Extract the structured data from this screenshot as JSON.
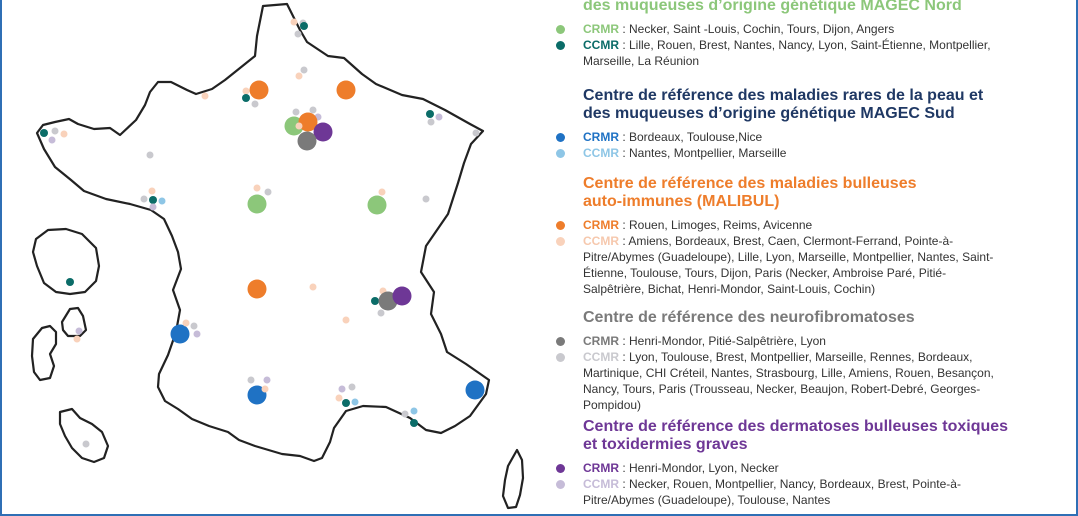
{
  "colors": {
    "magec_nord_cr": "#8cc77a",
    "magec_nord_cc": "#0b6c68",
    "magec_sud_cr": "#1f72c4",
    "magec_sud_cc": "#8ec6e6",
    "malibul_cr": "#ee7d2b",
    "malibul_cc": "#f9d2bb",
    "neurofib_cr": "#7a7a7a",
    "neurofib_cc": "#c9c9ce",
    "toxiques_cr": "#6e3796",
    "toxiques_cc": "#c6bcd8",
    "map_outline": "#222222",
    "frame": "#2f6fb5"
  },
  "legend": [
    {
      "title": "des muqueuses d’origine génétique MAGEC Nord",
      "title_color": "#8cc77a",
      "rows": [
        {
          "key": "CRMR",
          "text": " : Necker, Saint -Louis, Cochin, Tours, Dijon, Angers",
          "dot_color": "#8cc77a",
          "key_color": "#8cc77a"
        },
        {
          "key": "CCMR",
          "text": " : Lille, Rouen, Brest, Nantes, Nancy, Lyon, Saint-Étienne, Montpellier,\nMarseille, La Réunion",
          "dot_color": "#0b6c68",
          "key_color": "#0b6c68"
        }
      ]
    },
    {
      "title": "Centre de référence des maladies rares de la peau et\ndes muqueuses d’origine génétique MAGEC Sud",
      "title_color": "#1f3864",
      "rows": [
        {
          "key": "CRMR",
          "text": " : Bordeaux, Toulouse,Nice",
          "dot_color": "#1f72c4",
          "key_color": "#1f72c4"
        },
        {
          "key": "CCMR",
          "text": " : Nantes, Montpellier, Marseille",
          "dot_color": "#8ec6e6",
          "key_color": "#8ec6e6"
        }
      ]
    },
    {
      "title": "Centre de référence des maladies bulleuses\nauto-immunes  (MALIBUL)",
      "title_color": "#ee7d2b",
      "rows": [
        {
          "key": "CRMR",
          "text": " : Rouen, Limoges, Reims, Avicenne",
          "dot_color": "#ee7d2b",
          "key_color": "#ee7d2b"
        },
        {
          "key": "CCMR",
          "text": " :  Amiens, Bordeaux, Brest, Caen, Clermont-Ferrand, Pointe-à-\nPitre/Abymes (Guadeloupe), Lille, Lyon, Marseille, Montpellier, Nantes, Saint-\nÉtienne, Toulouse, Tours, Dijon, Paris (Necker, Ambroise Paré, Pitié-\nSalpêtrière, Bichat, Henri-Mondor, Saint-Louis, Cochin)",
          "dot_color": "#f9d2bb",
          "key_color": "#f6c8ad"
        }
      ]
    },
    {
      "title": "Centre de référence des neurofibromatoses",
      "title_color": "#7a7a7a",
      "rows": [
        {
          "key": "CRMR",
          "text": " : Henri-Mondor, Pitié-Salpêtrière, Lyon",
          "dot_color": "#7a7a7a",
          "key_color": "#7a7a7a"
        },
        {
          "key": "CCMR",
          "text": " : Lyon, Toulouse, Brest, Montpellier, Marseille, Rennes, Bordeaux,\nMartinique, CHI Créteil, Nantes, Strasbourg, Lille, Amiens, Rouen, Besançon,\nNancy, Tours, Paris (Trousseau, Necker, Beaujon, Robert-Debré, Georges-\nPompidou)",
          "dot_color": "#c9c9ce",
          "key_color": "#c9c9ce"
        }
      ]
    },
    {
      "title": "Centre de référence des dermatoses bulleuses toxiques\net toxidermies graves",
      "title_color": "#6e3796",
      "rows": [
        {
          "key": "CRMR",
          "text": " : Henri-Mondor, Lyon, Necker",
          "dot_color": "#6e3796",
          "key_color": "#6e3796"
        },
        {
          "key": "CCMR",
          "text": " : Necker, Rouen, Montpellier, Nancy, Bordeaux, Brest, Pointe-à-\nPitre/Abymes (Guadeloupe), Toulouse, Nantes",
          "dot_color": "#c6bcd8",
          "key_color": "#c6bcd8"
        }
      ]
    }
  ]
}
